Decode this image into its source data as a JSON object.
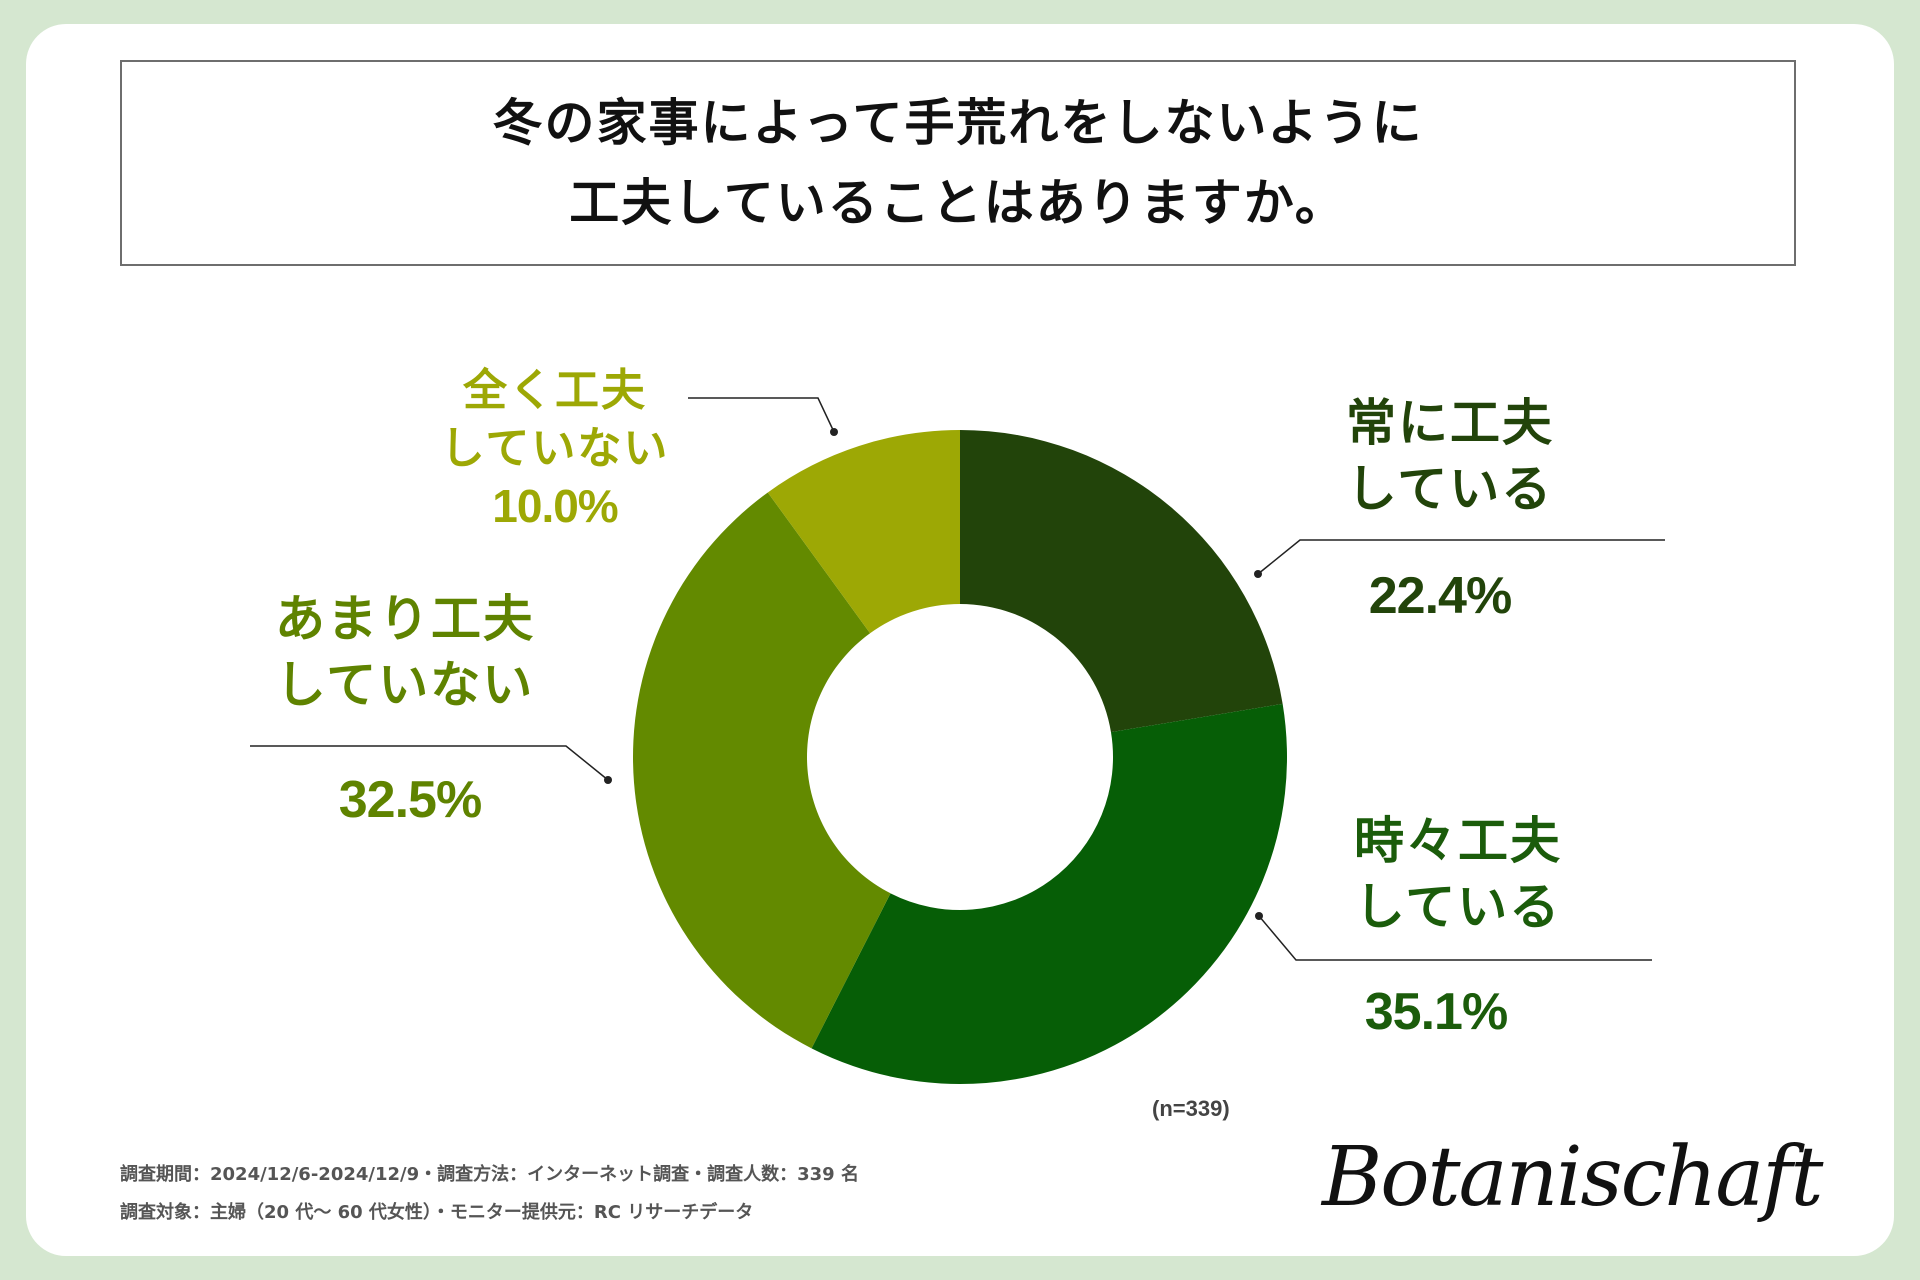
{
  "title": {
    "line1": "冬の家事によって手荒れをしないように",
    "line2": "工夫していることはありますか。"
  },
  "chart_data": {
    "type": "pie",
    "donut": true,
    "categories": [
      "常に工夫している",
      "時々工夫している",
      "あまり工夫していない",
      "全く工夫していない"
    ],
    "values": [
      22.4,
      35.1,
      32.5,
      10.0
    ],
    "colors": [
      "#22440a",
      "#065e06",
      "#638a00",
      "#9da805"
    ],
    "label_colors": [
      "#22440a",
      "#1b5c0b",
      "#5f8300",
      "#9da805"
    ],
    "labels": [
      {
        "line1": "常に工夫",
        "line2": "している",
        "pct": "22.4%"
      },
      {
        "line1": "時々工夫",
        "line2": "している",
        "pct": "35.1%"
      },
      {
        "line1": "あまり工夫",
        "line2": "していない",
        "pct": "32.5%"
      },
      {
        "line1": "全く工夫",
        "line2": "していない",
        "pct": "10.0%"
      }
    ],
    "n": "(n=339)"
  },
  "footer": {
    "line1": "調査期間：2024/12/6-2024/12/9・調査方法：インターネット調査・調査人数：339 名",
    "line2": "調査対象：主婦（20 代〜 60 代女性）・モニター提供元：RC リサーチデータ"
  },
  "brand": "Botanischaft"
}
